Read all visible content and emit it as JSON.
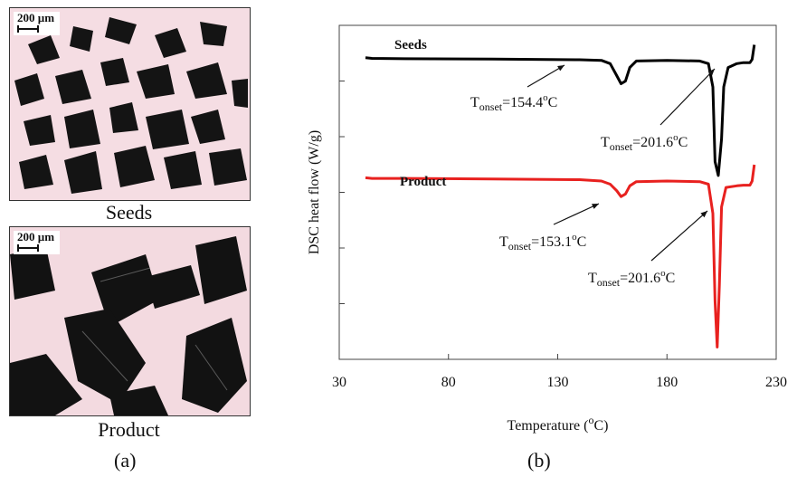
{
  "panels": {
    "a": {
      "label": "(a)",
      "seeds": {
        "caption": "Seeds",
        "scalebar": "200 µm"
      },
      "product": {
        "caption": "Product",
        "scalebar": "200 µm"
      }
    },
    "b": {
      "label": "(b)"
    }
  },
  "chart_data": {
    "type": "line",
    "xlabel_prefix": "Temperature (",
    "xlabel_sup": "o",
    "xlabel_suffix": "C)",
    "ylabel": "DSC heat flow (W/g)",
    "xlim": [
      30,
      230
    ],
    "xticks": [
      30,
      80,
      130,
      180,
      230
    ],
    "grid": false,
    "series": [
      {
        "name": "Seeds",
        "color": "#000000",
        "baseline": 0,
        "points": [
          [
            42,
            0.0
          ],
          [
            45,
            -0.02
          ],
          [
            60,
            -0.03
          ],
          [
            100,
            -0.04
          ],
          [
            140,
            -0.06
          ],
          [
            150,
            -0.08
          ],
          [
            154,
            -0.18
          ],
          [
            157,
            -0.55
          ],
          [
            159,
            -0.8
          ],
          [
            161,
            -0.72
          ],
          [
            163,
            -0.3
          ],
          [
            166,
            -0.1
          ],
          [
            180,
            -0.08
          ],
          [
            195,
            -0.1
          ],
          [
            199,
            -0.18
          ],
          [
            201,
            -0.9
          ],
          [
            202,
            -3.2
          ],
          [
            203.5,
            -3.63
          ],
          [
            205,
            -2.5
          ],
          [
            206,
            -0.9
          ],
          [
            208,
            -0.3
          ],
          [
            212,
            -0.18
          ],
          [
            215,
            -0.15
          ],
          [
            218,
            -0.15
          ],
          [
            219,
            -0.05
          ],
          [
            220,
            0.4
          ]
        ],
        "annotations": [
          {
            "label": "onset=154.4",
            "value": 154.4
          },
          {
            "label": "onset=201.6",
            "value": 201.6
          }
        ]
      },
      {
        "name": "Product",
        "color": "#e8211f",
        "baseline": -3.7,
        "points": [
          [
            42,
            -3.7
          ],
          [
            45,
            -3.72
          ],
          [
            60,
            -3.72
          ],
          [
            100,
            -3.74
          ],
          [
            140,
            -3.76
          ],
          [
            150,
            -3.8
          ],
          [
            154,
            -3.9
          ],
          [
            157,
            -4.1
          ],
          [
            159,
            -4.28
          ],
          [
            161,
            -4.2
          ],
          [
            163,
            -3.95
          ],
          [
            166,
            -3.82
          ],
          [
            180,
            -3.8
          ],
          [
            195,
            -3.82
          ],
          [
            199,
            -3.9
          ],
          [
            201,
            -4.8
          ],
          [
            202,
            -7.5
          ],
          [
            203,
            -8.92
          ],
          [
            204,
            -7.0
          ],
          [
            205,
            -4.6
          ],
          [
            207,
            -4.0
          ],
          [
            212,
            -3.95
          ],
          [
            215,
            -3.93
          ],
          [
            218,
            -3.93
          ],
          [
            219,
            -3.8
          ],
          [
            220,
            -3.3
          ]
        ],
        "annotations": [
          {
            "label": "onset=153.1",
            "value": 153.1
          },
          {
            "label": "onset=201.6",
            "value": 201.6
          }
        ]
      }
    ],
    "annotation_prefix": "T",
    "annotation_unit_sup": "o",
    "annotation_unit": "C"
  }
}
